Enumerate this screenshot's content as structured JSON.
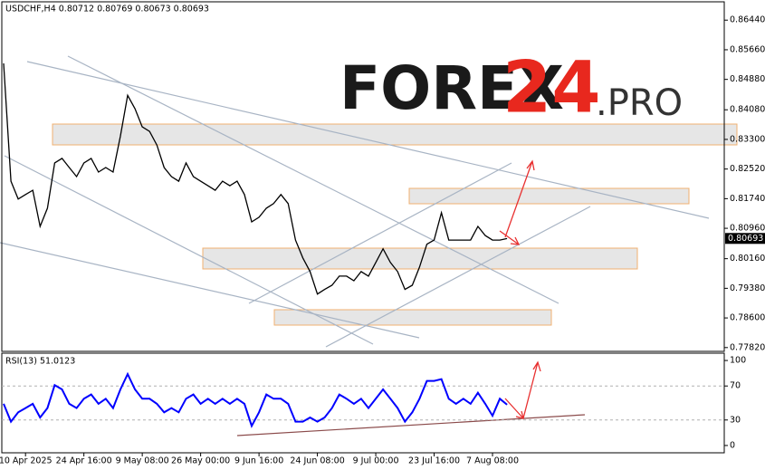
{
  "chart_data": [
    {
      "type": "line",
      "title": "USDCHF,H4  0.80712 0.80769 0.80673 0.80693",
      "color": "#000000",
      "values": [
        0.853,
        0.822,
        0.8173,
        0.8185,
        0.8196,
        0.8101,
        0.8149,
        0.8268,
        0.828,
        0.8256,
        0.8232,
        0.8268,
        0.828,
        0.8244,
        0.8256,
        0.8244,
        0.8339,
        0.8446,
        0.8411,
        0.8363,
        0.8351,
        0.8315,
        0.8256,
        0.8232,
        0.822,
        0.8268,
        0.8232,
        0.822,
        0.8208,
        0.8196,
        0.822,
        0.8208,
        0.822,
        0.8185,
        0.8113,
        0.8125,
        0.8149,
        0.8161,
        0.8185,
        0.8161,
        0.8065,
        0.8018,
        0.7982,
        0.7923,
        0.7935,
        0.7946,
        0.797,
        0.797,
        0.7958,
        0.7982,
        0.797,
        0.8006,
        0.8042,
        0.8006,
        0.7982,
        0.7935,
        0.7946,
        0.7994,
        0.8054,
        0.8065,
        0.8137,
        0.8065,
        0.8065,
        0.8065,
        0.8065,
        0.8101,
        0.8077,
        0.8065,
        0.8065,
        0.8069
      ],
      "current_price": {
        "value": 0.80693,
        "label": "0.80693"
      },
      "ylim": [
        0.8697,
        0.7772
      ],
      "yticks": [
        {
          "value": 0.8644,
          "label": "0.86440"
        },
        {
          "value": 0.8566,
          "label": "0.85660"
        },
        {
          "value": 0.8488,
          "label": "0.84880"
        },
        {
          "value": 0.8408,
          "label": "0.84080"
        },
        {
          "value": 0.833,
          "label": "0.83300"
        },
        {
          "value": 0.8252,
          "label": "0.82520"
        },
        {
          "value": 0.8174,
          "label": "0.81740"
        },
        {
          "value": 0.8096,
          "label": "0.80960"
        },
        {
          "value": 0.8016,
          "label": "0.80160"
        },
        {
          "value": 0.7938,
          "label": "0.79380"
        },
        {
          "value": 0.786,
          "label": "0.78600"
        },
        {
          "value": 0.7782,
          "label": "0.77820"
        }
      ],
      "watermark": [
        "FOREX",
        "24",
        ".PRO"
      ]
    },
    {
      "type": "line",
      "title": "RSI(13) 51.0123",
      "color": "#0000ff",
      "categories": [
        null,
        null,
        null,
        "10 Apr 2025",
        null,
        null,
        null,
        null,
        null,
        null,
        null,
        "24 Apr 16:00",
        null,
        null,
        null,
        null,
        null,
        null,
        null,
        "9 May 08:00",
        null,
        null,
        null,
        null,
        null,
        null,
        null,
        "26 May 00:00",
        null,
        null,
        null,
        null,
        null,
        null,
        null,
        "9 Jun 16:00",
        null,
        null,
        null,
        null,
        null,
        null,
        null,
        "24 Jun 08:00",
        null,
        null,
        null,
        null,
        null,
        null,
        null,
        "9 Jul 00:00",
        null,
        null,
        null,
        null,
        null,
        null,
        null,
        "23 Jul 16:00",
        null,
        null,
        null,
        null,
        null,
        null,
        null,
        "7 Aug 08:00",
        null,
        null
      ],
      "values": [
        49,
        28,
        39,
        44,
        49,
        33,
        44,
        71,
        66,
        49,
        44,
        55,
        60,
        49,
        55,
        44,
        66,
        84,
        66,
        55,
        55,
        49,
        39,
        44,
        39,
        55,
        60,
        49,
        55,
        49,
        55,
        49,
        55,
        49,
        23,
        39,
        60,
        55,
        55,
        49,
        28,
        28,
        33,
        28,
        33,
        44,
        60,
        55,
        49,
        55,
        44,
        55,
        66,
        55,
        44,
        28,
        39,
        55,
        76,
        76,
        78,
        55,
        49,
        55,
        49,
        62,
        49,
        35,
        55,
        48
      ],
      "ylim": [
        108.6,
        -8.6
      ],
      "yticks": [
        100,
        70,
        30,
        0
      ],
      "levels": [
        70,
        30
      ]
    }
  ]
}
